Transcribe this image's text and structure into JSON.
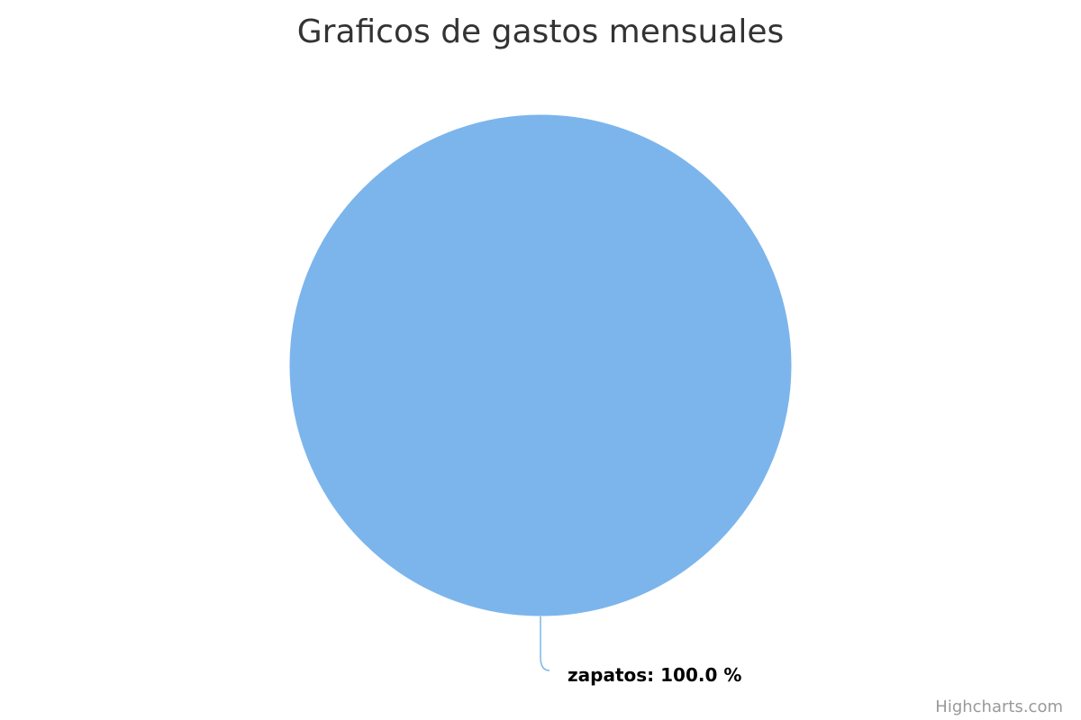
{
  "chart_data": {
    "type": "pie",
    "title": "Graficos de gastos mensuales",
    "slices": [
      {
        "name": "zapatos",
        "value": 100.0,
        "color": "#7cb5ec",
        "label": "zapatos: 100.0 %"
      }
    ]
  },
  "credits": {
    "text": "Highcharts.com"
  }
}
